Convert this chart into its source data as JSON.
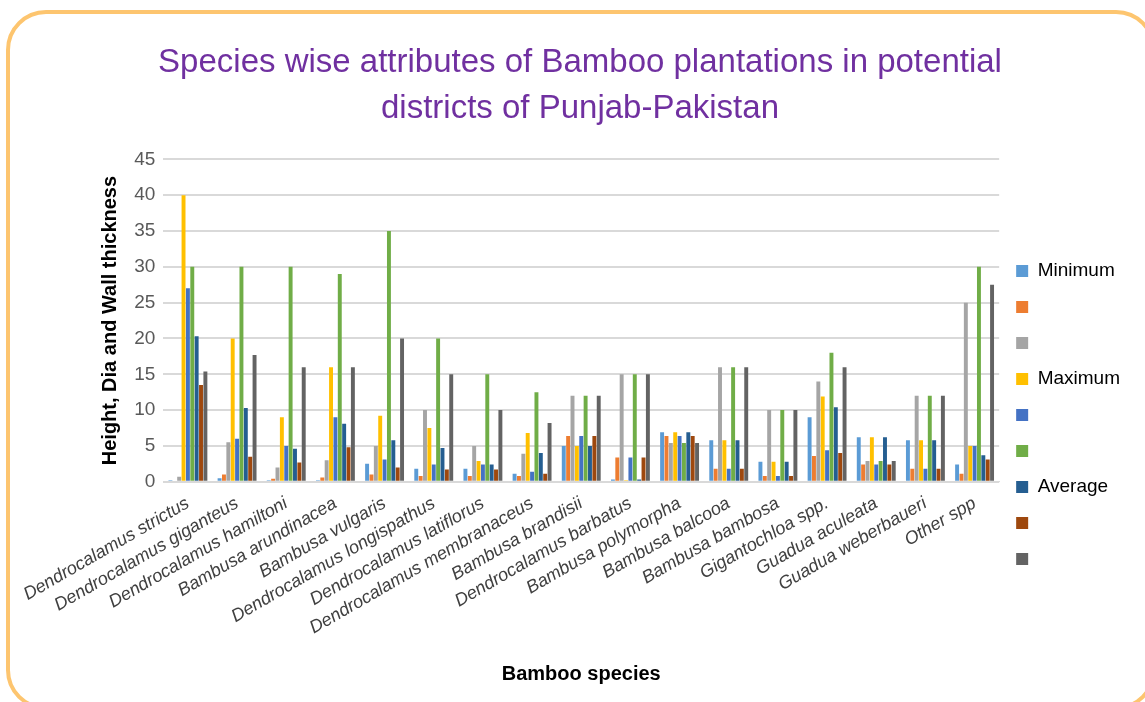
{
  "chart_data": {
    "type": "bar",
    "title": "Species wise attributes of Bamboo plantations in potential districts of Punjab-Pakistan",
    "xlabel": "Bamboo species",
    "ylabel": "Height, Dia and Wall thickness",
    "categories": [
      "Dendrocalamus strictus",
      "Dendrocalamus giganteus",
      "Dendrocalamus hamiltoni",
      "Bambusa arundinacea",
      "Bambusa vulgaris",
      "Dendrocalamus longispathus",
      "Dendrocalamus latiflorus",
      "Dendrocalamus membranaceus",
      "Bambusa brandisii",
      "Dendrocalamus barbatus",
      "Bambusa polymorpha",
      "Bambusa balcooa",
      "Bambusa bambosa",
      "Gigantochloa spp.",
      "Guadua aculeata",
      "Guadua weberbaueri",
      "Other spp"
    ],
    "series": [
      {
        "name": "Minimum",
        "color": "#5b9bd5",
        "values": [
          0.2,
          0.5,
          0.2,
          0.2,
          2.5,
          1.8,
          1.8,
          1.1,
          5,
          0.3,
          6.9,
          5.8,
          2.8,
          9,
          6.2,
          5.8,
          2.4
        ]
      },
      {
        "color": "#ed7d31",
        "values": [
          null,
          1,
          0.4,
          0.6,
          1,
          0.8,
          0.8,
          0.8,
          6.4,
          3.4,
          6.4,
          1.8,
          0.8,
          3.6,
          2.4,
          1.8,
          1.1
        ]
      },
      {
        "color": "#a5a5a5",
        "values": [
          0.7,
          5.5,
          2,
          3,
          5,
          10,
          5,
          3.9,
          12,
          15,
          5.4,
          16,
          10,
          14,
          2.9,
          12,
          25
        ]
      },
      {
        "name": "Maximum",
        "color": "#ffc000",
        "values": [
          40,
          20,
          9,
          16,
          9.2,
          7.5,
          2.9,
          6.8,
          5,
          0.2,
          6.9,
          5.8,
          2.8,
          11.9,
          6.2,
          5.8,
          5
        ]
      },
      {
        "color": "#4472c4",
        "values": [
          27,
          6,
          5,
          9,
          3.1,
          2.4,
          2.4,
          1.4,
          6.4,
          3.4,
          6.4,
          1.8,
          0.8,
          4.4,
          2.4,
          1.8,
          5
        ]
      },
      {
        "color": "#70ad47",
        "values": [
          30,
          30,
          30,
          29,
          35,
          20,
          15,
          12.5,
          12,
          15,
          5.4,
          16,
          10,
          18,
          2.9,
          12,
          30
        ]
      },
      {
        "name": "Average",
        "color": "#255e91",
        "values": [
          20.3,
          10.3,
          4.6,
          8.1,
          5.8,
          4.7,
          2.4,
          4,
          5,
          0.3,
          6.9,
          5.8,
          2.8,
          10.4,
          6.2,
          5.8,
          3.7
        ]
      },
      {
        "color": "#9e480e",
        "values": [
          13.5,
          3.5,
          2.7,
          4.8,
          2,
          1.7,
          1.7,
          1.1,
          6.4,
          3.4,
          6.4,
          1.8,
          0.8,
          4,
          2.4,
          1.8,
          3.1
        ]
      },
      {
        "color": "#636363",
        "values": [
          15.4,
          17.7,
          16,
          16,
          20,
          15,
          10,
          8.2,
          12,
          15,
          5.4,
          16,
          10,
          16,
          2.9,
          12,
          27.5
        ]
      }
    ],
    "ylim": [
      0,
      45
    ],
    "yticks": [
      0,
      5,
      10,
      15,
      20,
      25,
      30,
      35,
      40,
      45
    ],
    "grid": "y",
    "legend": "right"
  }
}
